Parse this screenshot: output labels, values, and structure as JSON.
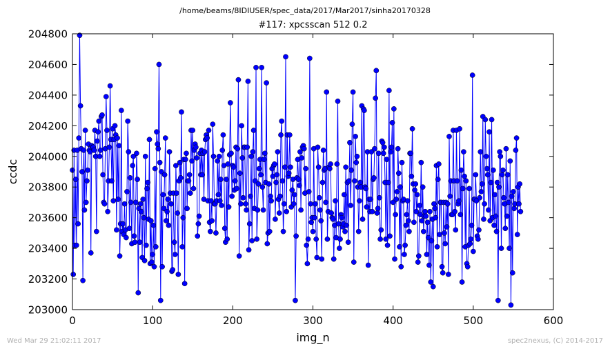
{
  "suptitle": "/home/beams/8IDIUSER/spec_data/2017/Mar2017/sinha20170328",
  "footer_left": "Wed Mar 29 21:02:11 2017",
  "footer_right": "spec2nexus, (C) 2014-2017",
  "chart_data": {
    "type": "scatter",
    "title": "#117: xpcsscan 512 0.2",
    "xlabel": "img_n",
    "ylabel": "ccdc",
    "xlim": [
      0,
      600
    ],
    "ylim": [
      203000,
      204800
    ],
    "xticks": [
      "0",
      "100",
      "200",
      "300",
      "400",
      "500",
      "600"
    ],
    "yticks": [
      "203000",
      "203200",
      "203400",
      "203600",
      "203800",
      "204000",
      "204200",
      "204400",
      "204600",
      "204800"
    ],
    "grid": false,
    "markers_connected": true,
    "color": "#0000ff",
    "x_start": 0,
    "x_step": 1,
    "y": [
      203910,
      203230,
      204040,
      203420,
      203850,
      203420,
      204040,
      203560,
      204120,
      204790,
      204330,
      204050,
      203900,
      203190,
      204040,
      203650,
      204170,
      203700,
      203840,
      203910,
      204080,
      204040,
      204030,
      203370,
      204070,
      204060,
      204060,
      204040,
      204170,
      204000,
      203510,
      204100,
      204160,
      204230,
      204000,
      204040,
      204260,
      204270,
      203880,
      203700,
      203690,
      204050,
      204390,
      204170,
      203640,
      203840,
      204060,
      204460,
      204110,
      203840,
      204180,
      203710,
      204110,
      204200,
      204140,
      203520,
      204120,
      203720,
      204070,
      203350,
      203560,
      204300,
      203510,
      203560,
      203490,
      203690,
      203520,
      203470,
      203770,
      204230,
      204030,
      203530,
      203860,
      203700,
      203430,
      203940,
      204000,
      203480,
      203440,
      203700,
      204020,
      203850,
      203110,
      203660,
      203440,
      203690,
      203640,
      203340,
      203720,
      203600,
      203320,
      204000,
      203420,
      203790,
      203830,
      203590,
      204110,
      203300,
      203580,
      203310,
      203360,
      203550,
      203280,
      203920,
      203410,
      204160,
      204080,
      204050,
      204600,
      203960,
      203060,
      203900,
      203280,
      203750,
      203660,
      203880,
      204120,
      203580,
      203640,
      203720,
      203550,
      204030,
      203760,
      203690,
      203250,
      203260,
      203760,
      203440,
      203360,
      203940,
      203760,
      203630,
      203230,
      203840,
      203960,
      203860,
      204290,
      203410,
      203600,
      203980,
      203170,
      203980,
      204020,
      203660,
      203840,
      203840,
      203880,
      203760,
      204170,
      203970,
      204170,
      203790,
      204040,
      204080,
      204060,
      203990,
      203480,
      203560,
      203610,
      204020,
      203880,
      204040,
      203880,
      204020,
      203720,
      204030,
      204110,
      204140,
      204120,
      203710,
      204170,
      203570,
      203510,
      203710,
      203580,
      204210,
      204000,
      203690,
      203690,
      203500,
      203710,
      203970,
      203750,
      204000,
      203710,
      203850,
      203680,
      204040,
      204140,
      203940,
      203530,
      203440,
      203850,
      203460,
      203950,
      203670,
      204010,
      204350,
      204020,
      203740,
      203940,
      203930,
      203780,
      203840,
      204060,
      203790,
      204050,
      204500,
      203350,
      203890,
      203690,
      204200,
      203990,
      203730,
      204060,
      204060,
      203690,
      203650,
      204060,
      204490,
      203390,
      203560,
      203740,
      204000,
      203450,
      204030,
      204170,
      203660,
      203840,
      204580,
      203460,
      203650,
      203820,
      203920,
      203980,
      203880,
      204580,
      203800,
      203650,
      203980,
      204020,
      203830,
      204480,
      203430,
      203500,
      203820,
      203510,
      203740,
      203710,
      203920,
      203870,
      203940,
      203950,
      203590,
      203830,
      203880,
      204030,
      203720,
      203630,
      203740,
      204140,
      204230,
      203840,
      203510,
      203690,
      203930,
      204650,
      203640,
      204140,
      203870,
      203890,
      204140,
      203930,
      203670,
      203780,
      203850,
      203690,
      203750,
      203060,
      203480,
      203860,
      203980,
      203850,
      203810,
      204030,
      203650,
      203990,
      204060,
      204070,
      204050,
      203760,
      203920,
      203420,
      203300,
      203460,
      203770,
      204640,
      203690,
      203570,
      203600,
      203510,
      204050,
      203600,
      203690,
      203460,
      203340,
      204060,
      203930,
      203730,
      203650,
      203580,
      203330,
      203830,
      204040,
      203910,
      203920,
      203700,
      204420,
      203460,
      203640,
      203930,
      203920,
      203950,
      203630,
      203600,
      203590,
      203330,
      203550,
      203710,
      203470,
      203950,
      204360,
      203560,
      203400,
      203460,
      203620,
      203600,
      203540,
      203560,
      203750,
      203510,
      203930,
      203550,
      203830,
      203440,
      203840,
      204090,
      203680,
      203910,
      204210,
      204420,
      203310,
      203840,
      204130,
      203960,
      204000,
      203800,
      203510,
      203710,
      203830,
      203800,
      204330,
      203590,
      204310,
      204300,
      203800,
      203790,
      203670,
      204030,
      203290,
      203720,
      203640,
      203720,
      204030,
      203640,
      203850,
      203860,
      204050,
      204380,
      204560,
      203630,
      203660,
      204020,
      203730,
      203460,
      203520,
      204100,
      204090,
      204020,
      204060,
      203830,
      203460,
      203980,
      203420,
      203830,
      204430,
      203480,
      204030,
      204060,
      204220,
      203700,
      204310,
      203330,
      203620,
      203720,
      203770,
      204050,
      203890,
      203410,
      203800,
      203280,
      203960,
      203710,
      203720,
      203360,
      203420,
      203550,
      203620,
      203710,
      203580,
      203510,
      204020,
      204020,
      203870,
      204180,
      203820,
      203570,
      203780,
      203820,
      203640,
      203750,
      203310,
      203350,
      203680,
      203620,
      203960,
      203580,
      203800,
      203510,
      203610,
      203640,
      203610,
      203360,
      203570,
      203470,
      203290,
      203640,
      203180,
      203450,
      203590,
      203150,
      203690,
      203660,
      203600,
      203940,
      203410,
      203850,
      203950,
      203490,
      203700,
      203700,
      203280,
      203240,
      203700,
      203500,
      203430,
      203700,
      203540,
      203690,
      203230,
      204130,
      203740,
      203840,
      203620,
      203620,
      204170,
      203840,
      203640,
      203520,
      204170,
      203840,
      203690,
      203710,
      204180,
      203620,
      203910,
      203180,
      203790,
      204030,
      203870,
      203410,
      203840,
      203300,
      203280,
      203420,
      203790,
      203430,
      203460,
      203550,
      204530,
      203380,
      203720,
      203720,
      203880,
      203710,
      203480,
      203460,
      203520,
      203730,
      204030,
      203770,
      203820,
      204260,
      203590,
      203690,
      204240,
      204000,
      203920,
      203880,
      203650,
      204160,
      203580,
      203830,
      204240,
      203600,
      203910,
      203550,
      203750,
      203610,
      203510,
      203830,
      203060,
      203800,
      204030,
      204000,
      203400,
      203880,
      203910,
      203730,
      203690,
      203530,
      204050,
      203610,
      203880,
      203700,
      203400,
      203970,
      203030,
      203740,
      203240,
      203770,
      203660,
      203690,
      204040,
      204120,
      203490,
      203800,
      203690,
      203820,
      203640
    ]
  }
}
